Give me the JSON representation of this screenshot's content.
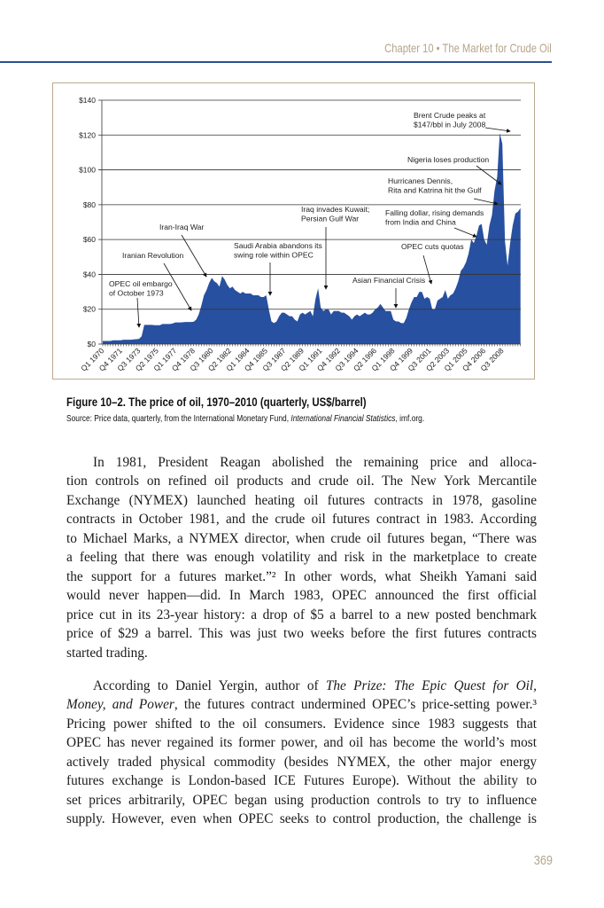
{
  "header": {
    "running_head": "Chapter 10  •  The Market for Crude Oil"
  },
  "colors": {
    "area_fill": "#2850a0",
    "header_rule": "#2d4f8e",
    "running_head": "#b5a58a",
    "frame": "#bca98f"
  },
  "chart_data": {
    "type": "area",
    "title": "Figure 10–2. The price of oil, 1970–2010 (quarterly, US$/barrel)",
    "ylim": [
      0,
      140
    ],
    "y_ticks": [
      "$0",
      "$20",
      "$40",
      "$60",
      "$80",
      "$100",
      "$120",
      "$140"
    ],
    "x_tick_labels": [
      "Q1 1970",
      "Q4 1971",
      "Q3 1973",
      "Q2 1975",
      "Q1 1977",
      "Q4 1978",
      "Q3 1980",
      "Q2 1982",
      "Q1 1984",
      "Q4 1985",
      "Q3 1987",
      "Q2 1989",
      "Q1 1991",
      "Q4 1992",
      "Q3 1994",
      "Q2 1996",
      "Q1 1998",
      "Q4 1999",
      "Q3 2001",
      "Q2 2003",
      "Q1 2005",
      "Q4 2006",
      "Q3 2008"
    ],
    "grid": true,
    "x_start": "Q1 1970",
    "values": [
      1.8,
      1.8,
      1.8,
      1.8,
      2.2,
      2.2,
      2.2,
      2.2,
      2.5,
      2.5,
      2.5,
      2.5,
      2.7,
      2.8,
      3.0,
      4.5,
      11,
      11,
      11,
      11,
      10.8,
      10.8,
      10.8,
      11.5,
      11.5,
      11.5,
      11.5,
      11.8,
      12.4,
      12.4,
      12.4,
      12.5,
      12.7,
      12.7,
      12.7,
      12.8,
      14,
      17,
      22,
      28,
      31,
      35,
      38,
      36,
      35,
      33,
      39,
      37,
      34,
      32,
      33,
      31,
      30,
      29,
      30,
      29,
      29,
      29,
      28,
      28,
      28,
      27,
      27,
      28,
      20,
      13,
      12,
      13,
      16,
      18,
      18,
      17,
      16,
      16,
      14,
      13,
      17,
      18,
      17,
      18,
      19,
      16,
      26,
      32,
      21,
      19,
      20,
      20,
      17,
      19,
      19,
      19,
      18,
      18,
      17,
      16,
      14,
      16,
      17,
      16,
      17,
      18,
      17,
      17,
      18,
      20,
      21,
      23,
      21,
      19,
      19,
      19,
      14,
      13,
      13,
      12,
      12,
      15,
      20,
      24,
      27,
      27,
      30,
      30,
      26,
      27,
      26,
      20,
      20,
      25,
      26,
      27,
      31,
      26,
      28,
      29,
      32,
      36,
      42,
      44,
      47,
      52,
      60,
      58,
      62,
      68,
      69,
      60,
      57,
      68,
      74,
      88,
      96,
      121,
      115,
      59,
      45,
      58,
      68,
      75,
      76,
      78
    ],
    "annotations": [
      {
        "lines": [
          "OPEC oil embargo",
          "of October 1973"
        ]
      },
      {
        "lines": [
          "Iranian Revolution"
        ]
      },
      {
        "lines": [
          "Iran-Iraq War"
        ]
      },
      {
        "lines": [
          "Saudi Arabia abandons its",
          "swing role within OPEC"
        ]
      },
      {
        "lines": [
          "Iraq invades Kuwait;",
          "Persian Gulf War"
        ]
      },
      {
        "lines": [
          "Asian Financial Crisis"
        ]
      },
      {
        "lines": [
          "OPEC cuts quotas"
        ]
      },
      {
        "lines": [
          "Falling dollar, rising demands",
          "from India and China"
        ]
      },
      {
        "lines": [
          "Hurricanes Dennis,",
          "Rita and Katrina hit the Gulf"
        ]
      },
      {
        "lines": [
          "Nigeria loses production"
        ]
      },
      {
        "lines": [
          "Brent Crude peaks at",
          "$147/bbl in July 2008"
        ]
      }
    ]
  },
  "figure": {
    "caption": "Figure 10–2. The price of oil, 1970–2010 (quarterly, US$/barrel)",
    "source_prefix": "Source: Price data, quarterly, from the International Monetary Fund, ",
    "source_italic": "International Financial Statistics",
    "source_suffix": ", imf.org."
  },
  "body": {
    "paragraph_1": [
      [
        {
          "t": "In 1981, President Reagan abolished the remaining price and alloca-"
        }
      ],
      [
        {
          "t": "tion controls on refined oil products and crude oil. The New York Mercantile"
        }
      ],
      [
        {
          "t": "Exchange (NYMEX) launched heating oil futures contracts in 1978, gasoline"
        }
      ],
      [
        {
          "t": "contracts in October 1981, and the crude oil futures contract in 1983. According"
        }
      ],
      [
        {
          "t": "to Michael Marks, a NYMEX director, when crude oil futures began, “There was"
        }
      ],
      [
        {
          "t": "a feeling that there was enough volatility and risk in the marketplace to create"
        }
      ],
      [
        {
          "t": "the support for a futures market.”² In other words, what Sheikh Yamani said"
        }
      ],
      [
        {
          "t": "would never happen—did. In March 1983, OPEC announced the first official"
        }
      ],
      [
        {
          "t": "price cut in its 23-year history: a drop of $5 a barrel to a new posted benchmark"
        }
      ],
      [
        {
          "t": "price of $29 a barrel. This was just two weeks before the first futures contracts"
        }
      ],
      [
        {
          "t": "started trading."
        }
      ]
    ],
    "paragraph_2": [
      [
        {
          "t": "According to Daniel Yergin, author of "
        },
        {
          "t": "The Prize: The Epic Quest for Oil,",
          "i": true
        }
      ],
      [
        {
          "t": "Money, and Power",
          "i": true
        },
        {
          "t": ", the futures contract undermined OPEC’s price-setting power.³"
        }
      ],
      [
        {
          "t": "Pricing power shifted to the oil consumers. Evidence since 1983 suggests that"
        }
      ],
      [
        {
          "t": "OPEC has never regained its former power, and oil has become the world’s most"
        }
      ],
      [
        {
          "t": "actively traded physical commodity (besides NYMEX, the other major energy"
        }
      ],
      [
        {
          "t": "futures exchange is London-based ICE Futures Europe). Without the ability to"
        }
      ],
      [
        {
          "t": "set prices arbitrarily, OPEC began using production controls to try to influence"
        }
      ],
      [
        {
          "t": "supply. However, even when OPEC seeks to control production, the challenge is"
        }
      ]
    ]
  },
  "footer": {
    "page_number": "369"
  }
}
